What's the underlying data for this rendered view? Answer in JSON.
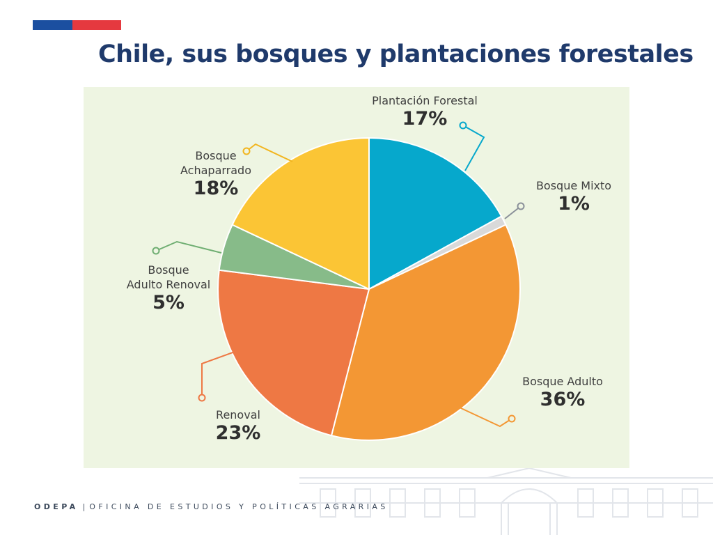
{
  "title": "Chile, sus bosques y plantaciones forestales",
  "footer": {
    "org": "ODEPA",
    "separator": "|",
    "name": "OFICINA DE ESTUDIOS Y POLÍTICAS AGRARIAS"
  },
  "colors": {
    "title": "#1f3a6b",
    "flag_blue": "#1b4fa0",
    "flag_red": "#e5393f",
    "panel_background": "#eef5e2"
  },
  "chart_data": {
    "type": "pie",
    "title": "",
    "slices": [
      {
        "name_lines": [
          "Plantación Forestal"
        ],
        "label": "17%",
        "value": 17,
        "color": "#06a8cc"
      },
      {
        "name_lines": [
          "Bosque Mixto"
        ],
        "label": "1%",
        "value": 1,
        "color": "#d9d9d9",
        "leader_color": "#8a9099"
      },
      {
        "name_lines": [
          "Bosque Adulto"
        ],
        "label": "36%",
        "value": 36,
        "color": "#f39734"
      },
      {
        "name_lines": [
          "Renoval"
        ],
        "label": "23%",
        "value": 23,
        "color": "#ee7844"
      },
      {
        "name_lines": [
          "Bosque",
          "Adulto Renoval"
        ],
        "label": "5%",
        "value": 5,
        "color": "#87bb89",
        "leader_color": "#6fae72"
      },
      {
        "name_lines": [
          "Bosque",
          "Achaparrado"
        ],
        "label": "18%",
        "value": 18,
        "color": "#fbc535",
        "leader_color": "#f2b51e"
      }
    ],
    "start_angle_deg": 0,
    "direction": "clockwise",
    "legend": "none",
    "labels": "outside with leader lines"
  }
}
